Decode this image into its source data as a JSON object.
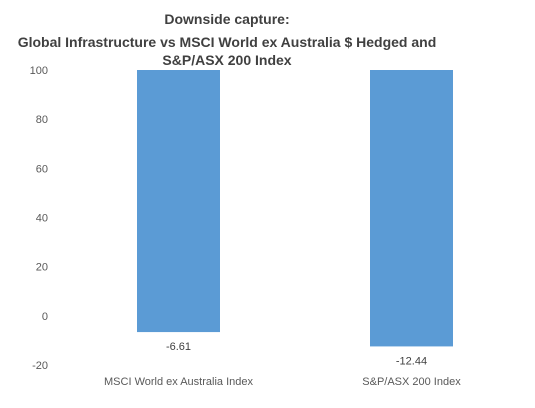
{
  "chart_data": {
    "type": "bar",
    "title_lines": [
      "Downside capture:",
      "Global Infrastructure vs MSCI World ex Australia $ Hedged and",
      "S&P/ASX 200 Index"
    ],
    "categories": [
      "MSCI World ex Australia Index",
      "S&P/ASX 200 Index"
    ],
    "values": [
      -6.61,
      -12.44
    ],
    "value_labels": [
      "-6.61",
      "-12.44"
    ],
    "ylim": [
      -20,
      100
    ],
    "yticks": [
      -20,
      0,
      20,
      40,
      60,
      80,
      100
    ],
    "ytick_labels": [
      "-20",
      "0",
      "20",
      "40",
      "60",
      "80",
      "100"
    ],
    "bar_color": "#5b9bd5",
    "grid": false,
    "legend": "none"
  }
}
